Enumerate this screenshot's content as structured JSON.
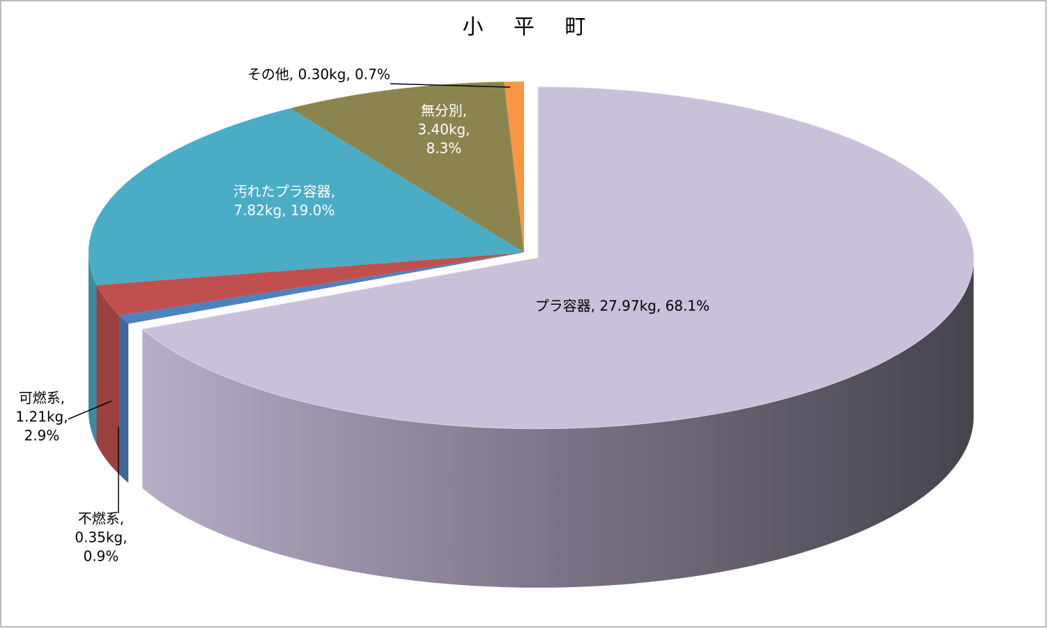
{
  "chart_data": {
    "type": "pie3d",
    "title": "小 平 町",
    "values": [
      27.97,
      0.35,
      1.21,
      7.82,
      3.4,
      0.3
    ],
    "percentages": [
      68.1,
      0.9,
      2.9,
      19.0,
      8.3,
      0.7
    ],
    "labels": [
      [
        "プラ容器, 27.97kg, 68.1%"
      ],
      [
        "不燃系,",
        "0.35kg,",
        "0.9%"
      ],
      [
        "可燃系,",
        "1.21kg,",
        "2.9%"
      ],
      [
        "汚れたプラ容器,",
        "7.82kg, 19.0%"
      ],
      [
        "無分別,",
        "3.40kg,",
        "8.3%"
      ],
      [
        "その他, 0.30kg, 0.7%"
      ]
    ],
    "colors": [
      "#c9c0d9",
      "#4f81bd",
      "#c0504d",
      "#4bacc6",
      "#8c844f",
      "#f79646"
    ]
  }
}
